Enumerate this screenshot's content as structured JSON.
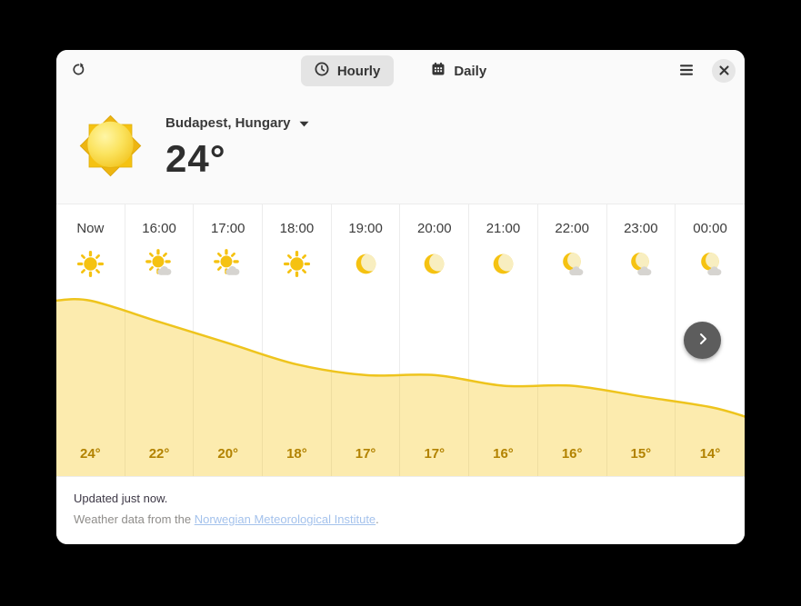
{
  "header": {
    "tabs": [
      {
        "label": "Hourly",
        "icon": "clock-icon",
        "selected": true
      },
      {
        "label": "Daily",
        "icon": "calendar-icon",
        "selected": false
      }
    ]
  },
  "location": {
    "name": "Budapest, Hungary",
    "current_temp": "24°",
    "condition_icon": "sun-icon"
  },
  "hourly": [
    {
      "time": "Now",
      "icon": "sun",
      "temp_label": "24°"
    },
    {
      "time": "16:00",
      "icon": "sun-cloud",
      "temp_label": "22°"
    },
    {
      "time": "17:00",
      "icon": "sun-cloud",
      "temp_label": "20°"
    },
    {
      "time": "18:00",
      "icon": "sun",
      "temp_label": "18°"
    },
    {
      "time": "19:00",
      "icon": "moon",
      "temp_label": "17°"
    },
    {
      "time": "20:00",
      "icon": "moon",
      "temp_label": "17°"
    },
    {
      "time": "21:00",
      "icon": "moon",
      "temp_label": "16°"
    },
    {
      "time": "22:00",
      "icon": "moon-cloud",
      "temp_label": "16°"
    },
    {
      "time": "23:00",
      "icon": "moon-cloud",
      "temp_label": "15°"
    },
    {
      "time": "00:00",
      "icon": "moon-cloud",
      "temp_label": "14°"
    }
  ],
  "chart_data": {
    "type": "area",
    "x": [
      "Now",
      "16:00",
      "17:00",
      "18:00",
      "19:00",
      "20:00",
      "21:00",
      "22:00",
      "23:00",
      "00:00"
    ],
    "values": [
      24,
      22,
      20,
      18,
      17,
      17,
      16,
      16,
      15,
      14
    ],
    "title": "Hourly temperature forecast (°C)",
    "xlabel": "",
    "ylabel": "",
    "ylim": [
      14,
      24
    ],
    "legend": "none",
    "grid": "vertical-column-separators"
  },
  "footer": {
    "updated": "Updated just now.",
    "credit_prefix": "Weather data from the ",
    "credit_link": "Norwegian Meteorological Institute",
    "credit_suffix": "."
  },
  "colors": {
    "accent_yellow": "#f5c211",
    "chart_line": "#eec41d",
    "chart_fill": "rgba(245,197,24,0.35)",
    "temp_text": "#b28200",
    "link": "#a4c2ec"
  }
}
